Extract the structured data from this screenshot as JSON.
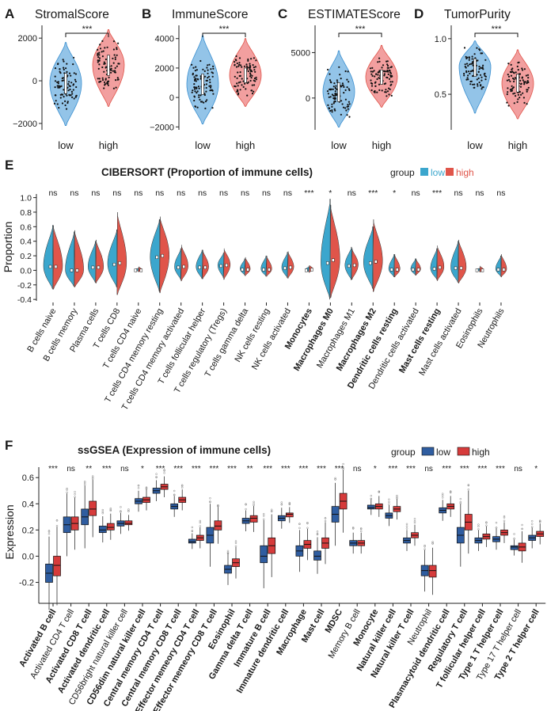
{
  "colors": {
    "low": "#3ba6cd",
    "low_violin": "#6fb0e0",
    "high": "#e0554a",
    "high_violin": "#ee7f7f",
    "box_low": "#2f5da0",
    "box_high": "#d63b3b"
  },
  "chart_data": [
    {
      "panel": "A",
      "type": "violin",
      "title": "StromalScore",
      "categories": [
        "low",
        "high"
      ],
      "yticks": [
        "2000",
        "0",
        "−2000"
      ],
      "ylim": [
        -2300,
        2600
      ],
      "series": [
        {
          "name": "low",
          "median": -100,
          "q1": -600,
          "q3": 350,
          "min": -2100,
          "max": 1800
        },
        {
          "name": "high",
          "median": 750,
          "q1": 250,
          "q3": 1200,
          "min": -1200,
          "max": 2400
        }
      ],
      "significance": "***"
    },
    {
      "panel": "B",
      "type": "violin",
      "title": "ImmuneScore",
      "categories": [
        "low",
        "high"
      ],
      "yticks": [
        "4000",
        "2000",
        "0",
        "−2000"
      ],
      "ylim": [
        -2200,
        4900
      ],
      "series": [
        {
          "name": "low",
          "median": 900,
          "q1": 200,
          "q3": 1600,
          "min": -1800,
          "max": 4200
        },
        {
          "name": "high",
          "median": 1500,
          "q1": 1000,
          "q3": 2000,
          "min": -600,
          "max": 4000
        }
      ],
      "significance": "***"
    },
    {
      "panel": "C",
      "type": "violin",
      "title": "ESTIMATEScore",
      "categories": [
        "low",
        "high"
      ],
      "yticks": [
        "5000",
        "0"
      ],
      "ylim": [
        -3500,
        8000
      ],
      "series": [
        {
          "name": "low",
          "median": 700,
          "q1": -400,
          "q3": 1700,
          "min": -3200,
          "max": 5200
        },
        {
          "name": "high",
          "median": 2300,
          "q1": 1500,
          "q3": 3100,
          "min": -1000,
          "max": 5800
        }
      ],
      "significance": "***"
    },
    {
      "panel": "D",
      "type": "violin",
      "title": "TumorPurity",
      "categories": [
        "low",
        "high"
      ],
      "yticks": [
        "1.0",
        "0.5"
      ],
      "ylim": [
        0.18,
        1.12
      ],
      "series": [
        {
          "name": "low",
          "median": 0.75,
          "q1": 0.66,
          "q3": 0.82,
          "min": 0.33,
          "max": 0.98
        },
        {
          "name": "high",
          "median": 0.6,
          "q1": 0.52,
          "q3": 0.68,
          "min": 0.28,
          "max": 0.9
        }
      ],
      "significance": "***"
    },
    {
      "panel": "E",
      "type": "split-violin",
      "title": "CIBERSORT (Proportion of immune cells)",
      "ylabel": "Proportion",
      "legend_title": "group",
      "legend": [
        "low",
        "high"
      ],
      "yticks": [
        "1.0",
        "0.8",
        "0.6",
        "0.4",
        "0.2",
        "0.0",
        "-0.2",
        "-0.4"
      ],
      "ylim": [
        -0.42,
        1.05
      ],
      "categories": [
        "B cells naive",
        "B cells memory",
        "Plasma cells",
        "T cells CD8",
        "T cells CD4 naive",
        "T cells CD4 memory resting",
        "T cells CD4 memory activated",
        "T cells follicular helper",
        "T cells regulatory (Tregs)",
        "T cells gamma delta",
        "NK cells resting",
        "NK cells activated",
        "Monocytes",
        "Macrophages M0",
        "Macrophages M1",
        "Macrophages M2",
        "Dendritic cells resting",
        "Dendritic cells activated",
        "Mast cells resting",
        "Mast cells activated",
        "Eosinophils",
        "Neutrophils"
      ],
      "bold": [
        false,
        false,
        false,
        false,
        false,
        false,
        false,
        false,
        false,
        false,
        false,
        false,
        true,
        true,
        false,
        true,
        true,
        false,
        true,
        false,
        false,
        false
      ],
      "significance": [
        "ns",
        "ns",
        "ns",
        "ns",
        "ns",
        "ns",
        "ns",
        "ns",
        "ns",
        "ns",
        "ns",
        "ns",
        "***",
        "*",
        "ns",
        "***",
        "*",
        "ns",
        "***",
        "ns",
        "ns",
        "ns"
      ],
      "max_low": [
        0.62,
        0.53,
        0.4,
        0.56,
        0.03,
        0.7,
        0.3,
        0.28,
        0.24,
        0.16,
        0.2,
        0.25,
        0.05,
        0.98,
        0.32,
        0.6,
        0.22,
        0.16,
        0.3,
        0.4,
        0.03,
        0.2
      ],
      "max_high": [
        0.62,
        0.55,
        0.42,
        0.8,
        0.05,
        0.74,
        0.35,
        0.28,
        0.3,
        0.18,
        0.2,
        0.26,
        0.07,
        0.9,
        0.3,
        0.7,
        0.22,
        0.16,
        0.34,
        0.42,
        0.06,
        0.22
      ],
      "median_low": [
        0.05,
        0.0,
        0.04,
        0.08,
        0.0,
        0.18,
        0.04,
        0.04,
        0.06,
        0.01,
        0.01,
        0.03,
        0.0,
        0.1,
        0.06,
        0.1,
        0.01,
        0.01,
        0.02,
        0.03,
        0.0,
        0.01
      ],
      "median_high": [
        0.05,
        0.0,
        0.04,
        0.1,
        0.0,
        0.2,
        0.05,
        0.04,
        0.07,
        0.01,
        0.01,
        0.04,
        0.01,
        0.14,
        0.07,
        0.12,
        0.01,
        0.01,
        0.04,
        0.03,
        0.0,
        0.01
      ]
    },
    {
      "panel": "F",
      "type": "boxplot",
      "title": "ssGSEA (Expression of immune cells)",
      "ylabel": "Expression",
      "legend_title": "group",
      "legend": [
        "low",
        "high"
      ],
      "yticks": [
        "0.6",
        "0.4",
        "0.2",
        "0.0",
        "-0.2"
      ],
      "ylim": [
        -0.36,
        0.68
      ],
      "categories": [
        "Activated B cell",
        "Activated CD4 T cell",
        "Activated CD8 T cell",
        "Activated dendritic cell",
        "CD56bright natural killer cell",
        "CD56dim natural killer cell",
        "Central memory CD4 T cell",
        "Central memory CD8 T cell",
        "Effector memeory CD4 T cell",
        "Effector memeory CD8 T cell",
        "Eosinophil",
        "Gamma delta T cell",
        "Immature  B cell",
        "Immature dendritic cell",
        "Macrophage",
        "Mast cell",
        "MDSC",
        "Memory B cell",
        "Monocyte",
        "Natural killer cell",
        "Natural killer T cell",
        "Neutrophil",
        "Plasmacytoid dendritic cell",
        "Regulatory T cell",
        "T follicular helper cell",
        "Type 1 T helper cell",
        "Type 17 T helper cell",
        "Type 2 T helper cell"
      ],
      "bold": [
        true,
        false,
        true,
        true,
        false,
        true,
        true,
        true,
        true,
        true,
        true,
        true,
        true,
        true,
        true,
        true,
        true,
        false,
        true,
        true,
        true,
        false,
        true,
        true,
        true,
        true,
        false,
        true
      ],
      "significance": [
        "***",
        "ns",
        "**",
        "***",
        "ns",
        "*",
        "***",
        "***",
        "***",
        "***",
        "***",
        "**",
        "***",
        "***",
        "***",
        "***",
        "***",
        "ns",
        "*",
        "***",
        "***",
        "ns",
        "***",
        "***",
        "***",
        "***",
        "ns",
        "*"
      ],
      "low": [
        [
          -0.13,
          -0.2,
          -0.06
        ],
        [
          0.24,
          0.18,
          0.3
        ],
        [
          0.3,
          0.24,
          0.36
        ],
        [
          0.2,
          0.18,
          0.23
        ],
        [
          0.25,
          0.23,
          0.27
        ],
        [
          0.42,
          0.4,
          0.44
        ],
        [
          0.5,
          0.48,
          0.52
        ],
        [
          0.38,
          0.36,
          0.4
        ],
        [
          0.11,
          0.1,
          0.13
        ],
        [
          0.16,
          0.1,
          0.22
        ],
        [
          -0.1,
          -0.13,
          -0.07
        ],
        [
          0.27,
          0.25,
          0.29
        ],
        [
          0.0,
          -0.05,
          0.08
        ],
        [
          0.29,
          0.27,
          0.31
        ],
        [
          0.04,
          0.0,
          0.08
        ],
        [
          0.0,
          -0.03,
          0.04
        ],
        [
          0.32,
          0.26,
          0.38
        ],
        [
          0.1,
          0.08,
          0.12
        ],
        [
          0.37,
          0.36,
          0.39
        ],
        [
          0.31,
          0.29,
          0.33
        ],
        [
          0.12,
          0.1,
          0.14
        ],
        [
          -0.11,
          -0.15,
          -0.07
        ],
        [
          0.35,
          0.33,
          0.37
        ],
        [
          0.16,
          0.1,
          0.22
        ],
        [
          0.12,
          0.1,
          0.14
        ],
        [
          0.13,
          0.11,
          0.15
        ],
        [
          0.07,
          0.05,
          0.08
        ],
        [
          0.14,
          0.12,
          0.16
        ]
      ],
      "high": [
        [
          -0.07,
          -0.15,
          0.0
        ],
        [
          0.25,
          0.2,
          0.3
        ],
        [
          0.36,
          0.31,
          0.42
        ],
        [
          0.22,
          0.2,
          0.25
        ],
        [
          0.25,
          0.24,
          0.27
        ],
        [
          0.43,
          0.41,
          0.45
        ],
        [
          0.53,
          0.51,
          0.55
        ],
        [
          0.43,
          0.41,
          0.45
        ],
        [
          0.14,
          0.12,
          0.16
        ],
        [
          0.23,
          0.2,
          0.27
        ],
        [
          -0.05,
          -0.08,
          -0.02
        ],
        [
          0.29,
          0.26,
          0.31
        ],
        [
          0.08,
          0.02,
          0.14
        ],
        [
          0.32,
          0.3,
          0.33
        ],
        [
          0.09,
          0.06,
          0.12
        ],
        [
          0.1,
          0.06,
          0.14
        ],
        [
          0.42,
          0.36,
          0.48
        ],
        [
          0.1,
          0.08,
          0.12
        ],
        [
          0.38,
          0.36,
          0.4
        ],
        [
          0.36,
          0.34,
          0.38
        ],
        [
          0.16,
          0.14,
          0.18
        ],
        [
          -0.11,
          -0.16,
          -0.07
        ],
        [
          0.38,
          0.36,
          0.4
        ],
        [
          0.26,
          0.2,
          0.32
        ],
        [
          0.15,
          0.13,
          0.17
        ],
        [
          0.18,
          0.16,
          0.2
        ],
        [
          0.07,
          0.04,
          0.1
        ],
        [
          0.17,
          0.15,
          0.19
        ]
      ]
    }
  ]
}
